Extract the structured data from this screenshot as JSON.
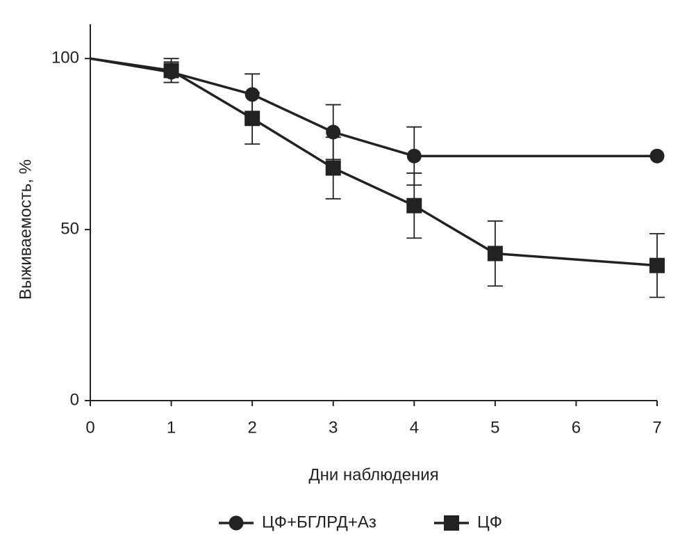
{
  "chart_data": {
    "type": "line",
    "x_label": "Дни наблюдения",
    "y_label": "Выживаемость, %",
    "xlim": [
      0,
      7
    ],
    "xticks": [
      0,
      1,
      2,
      3,
      4,
      5,
      6,
      7
    ],
    "ylim": [
      0,
      110
    ],
    "yticks": [
      0,
      50,
      100
    ],
    "series": [
      {
        "name": "ЦФ+БГЛРД+Аз",
        "color": "#222222",
        "marker": "circle",
        "x": [
          0,
          1,
          2,
          3,
          4,
          7
        ],
        "values": [
          100,
          96,
          89.5,
          78.5,
          71.5,
          71.5
        ],
        "errors": [
          0,
          3,
          6,
          8,
          8.5,
          0
        ]
      },
      {
        "name": "ЦФ",
        "color": "#222222",
        "marker": "square",
        "x": [
          0,
          1,
          2,
          3,
          4,
          5,
          7
        ],
        "values": [
          100,
          96.5,
          82.5,
          68,
          57,
          43,
          39.5
        ],
        "errors": [
          0,
          3.5,
          7.5,
          9,
          9.5,
          9.5,
          9.3
        ]
      }
    ]
  }
}
